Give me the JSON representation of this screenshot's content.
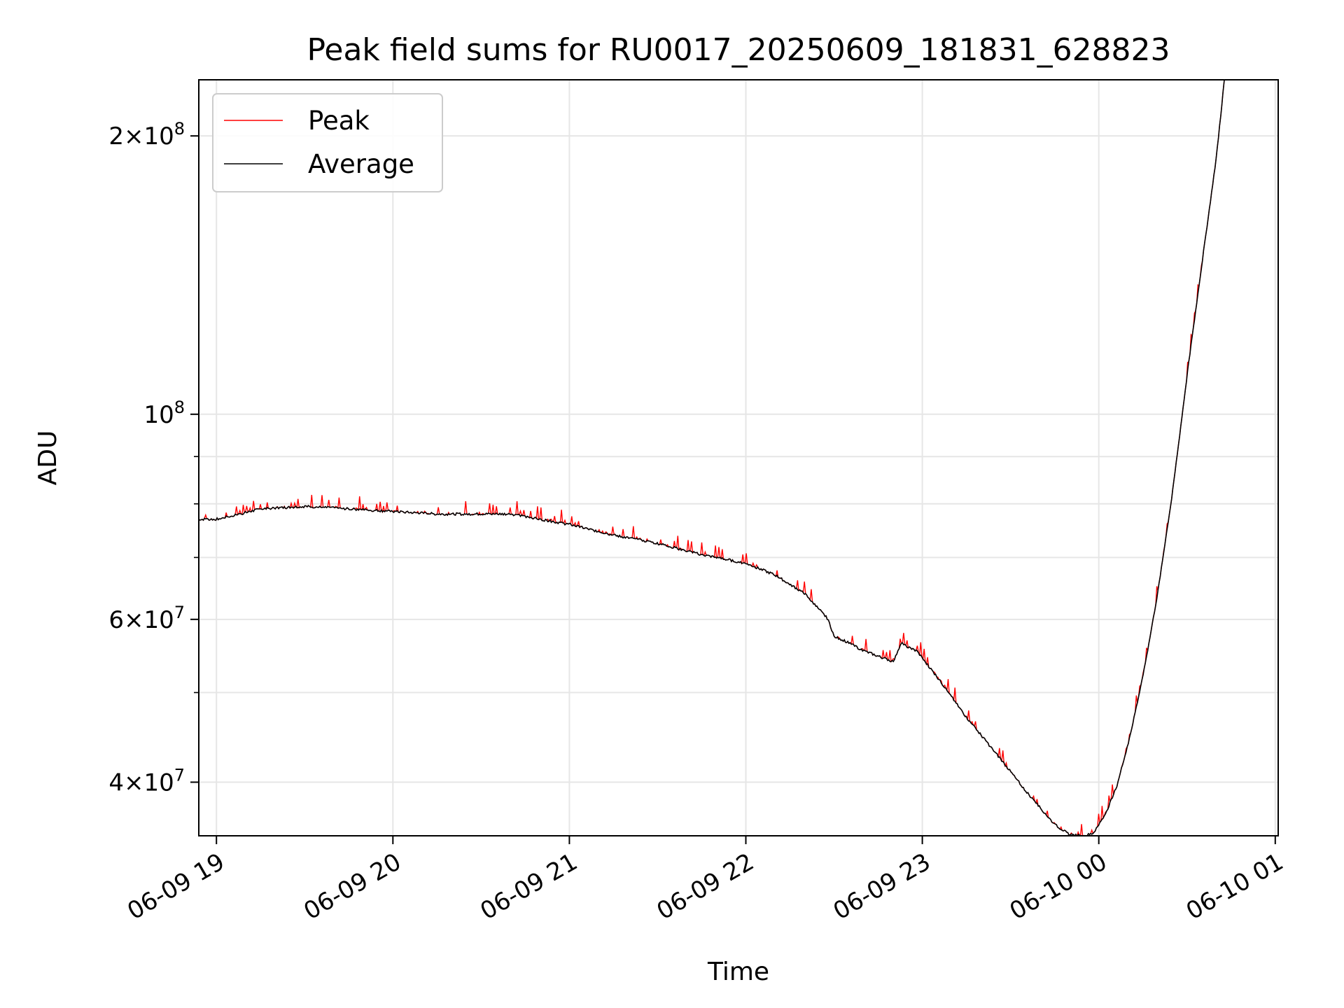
{
  "chart_data": {
    "type": "line",
    "title": "Peak field sums for RU0017_20250609_181831_628823",
    "xlabel": "Time",
    "ylabel": "ADU",
    "y_scale": "log",
    "ylim": [
      35000000,
      230000000
    ],
    "xlim": [
      "2025-06-09 18:54",
      "2025-06-10 01:01"
    ],
    "grid": true,
    "legend_position": "top-left",
    "x_ticks": [
      {
        "t": "2025-06-09 19:00",
        "label": "06-09 19"
      },
      {
        "t": "2025-06-09 20:00",
        "label": "06-09 20"
      },
      {
        "t": "2025-06-09 21:00",
        "label": "06-09 21"
      },
      {
        "t": "2025-06-09 22:00",
        "label": "06-09 22"
      },
      {
        "t": "2025-06-09 23:00",
        "label": "06-09 23"
      },
      {
        "t": "2025-06-10 00:00",
        "label": "06-10 00"
      },
      {
        "t": "2025-06-10 01:00",
        "label": "06-10 01"
      }
    ],
    "y_ticks": [
      {
        "value": 40000000,
        "mantissa": "4",
        "exponent": "7"
      },
      {
        "value": 60000000,
        "mantissa": "6",
        "exponent": "7"
      },
      {
        "value": 100000000,
        "mantissa": "",
        "exponent": "8"
      },
      {
        "value": 200000000,
        "mantissa": "2",
        "exponent": "8"
      }
    ],
    "y_minor_ticks": [
      50000000,
      70000000,
      80000000,
      90000000
    ],
    "series": [
      {
        "name": "Average",
        "color": "#000000",
        "x": [
          "2025-06-09 18:54",
          "2025-06-09 19:00",
          "2025-06-09 19:08",
          "2025-06-09 19:15",
          "2025-06-09 19:30",
          "2025-06-09 19:45",
          "2025-06-09 20:00",
          "2025-06-09 20:15",
          "2025-06-09 20:30",
          "2025-06-09 20:40",
          "2025-06-09 21:00",
          "2025-06-09 21:15",
          "2025-06-09 21:30",
          "2025-06-09 21:45",
          "2025-06-09 22:00",
          "2025-06-09 22:10",
          "2025-06-09 22:20",
          "2025-06-09 22:28",
          "2025-06-09 22:30",
          "2025-06-09 22:33",
          "2025-06-09 22:40",
          "2025-06-09 22:50",
          "2025-06-09 22:53",
          "2025-06-09 22:55",
          "2025-06-09 22:58",
          "2025-06-09 23:05",
          "2025-06-09 23:15",
          "2025-06-09 23:25",
          "2025-06-09 23:35",
          "2025-06-09 23:45",
          "2025-06-09 23:50",
          "2025-06-09 23:55",
          "2025-06-09 23:58",
          "2025-06-10 00:02",
          "2025-06-10 00:06",
          "2025-06-10 00:10",
          "2025-06-10 00:15",
          "2025-06-10 00:20",
          "2025-06-10 00:25",
          "2025-06-10 00:30",
          "2025-06-10 00:35",
          "2025-06-10 00:40",
          "2025-06-10 00:43"
        ],
        "values": [
          77000000,
          77000000,
          78000000,
          79000000,
          79500000,
          79000000,
          78500000,
          78000000,
          78000000,
          78000000,
          76000000,
          74000000,
          72500000,
          70500000,
          69000000,
          67000000,
          64000000,
          60000000,
          57500000,
          57000000,
          55500000,
          54000000,
          56500000,
          56000000,
          55500000,
          52000000,
          47000000,
          43000000,
          39200000,
          36000000,
          35100000,
          35000000,
          35200000,
          36800000,
          39500000,
          44000000,
          52000000,
          64000000,
          82000000,
          110000000,
          145000000,
          190000000,
          235000000
        ]
      },
      {
        "name": "Peak",
        "color": "#ff0000",
        "spike_amplitude": 0.035
      }
    ]
  }
}
